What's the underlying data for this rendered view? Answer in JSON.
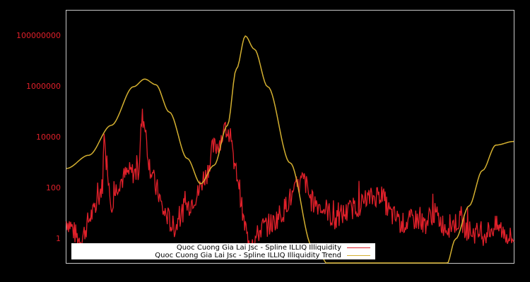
{
  "chart_data": {
    "type": "line",
    "title": "",
    "xlabel": "",
    "ylabel": "",
    "yscale": "log",
    "ylim": [
      0.15,
      1000000000
    ],
    "y_ticks": [
      {
        "label": "100000000",
        "value": 100000000
      },
      {
        "label": "1000000",
        "value": 1000000
      },
      {
        "label": "10000",
        "value": 10000
      },
      {
        "label": "100",
        "value": 100
      },
      {
        "label": "1",
        "value": 1
      }
    ],
    "grid": false,
    "legend_position": "bottom-left-inside",
    "series": [
      {
        "name": "Quoc Cuong Gia Lai Jsc - Spline ILLIQ Illiquidity",
        "color": "#e0202a",
        "x_frac": [
          0.0,
          0.03,
          0.06,
          0.08,
          0.085,
          0.09,
          0.1,
          0.12,
          0.14,
          0.16,
          0.17,
          0.19,
          0.2,
          0.22,
          0.24,
          0.27,
          0.29,
          0.31,
          0.33,
          0.36,
          0.38,
          0.4,
          0.405,
          0.42,
          0.44,
          0.46,
          0.48,
          0.5,
          0.53,
          0.55,
          0.58,
          0.6,
          0.62,
          0.65,
          0.68,
          0.7,
          0.73,
          0.75,
          0.78,
          0.8,
          0.82,
          0.85,
          0.88,
          0.9,
          0.93,
          0.96,
          1.0
        ],
        "values": [
          5,
          1,
          10,
          100,
          15000,
          1000,
          30,
          200,
          400,
          400,
          60000,
          500,
          100,
          10,
          3,
          20,
          50,
          300,
          4000,
          20000,
          400,
          3,
          1,
          1,
          3,
          4,
          10,
          40,
          200,
          30,
          15,
          5,
          10,
          20,
          40,
          60,
          8,
          4,
          6,
          4,
          10,
          3,
          5,
          2,
          1.5,
          3,
          1
        ]
      },
      {
        "name": "Quoc Cuong Gia Lai Jsc - Spline ILLIQ Illiquidity Trend",
        "color": "#d4b030",
        "x_frac": [
          0.0,
          0.05,
          0.1,
          0.15,
          0.175,
          0.2,
          0.23,
          0.27,
          0.3,
          0.33,
          0.36,
          0.38,
          0.4,
          0.42,
          0.45,
          0.5,
          0.55,
          0.6,
          0.65,
          0.7,
          0.75,
          0.8,
          0.85,
          0.87,
          0.9,
          0.93,
          0.96,
          1.0
        ],
        "values": [
          600,
          2000,
          30000,
          1000000,
          2000000,
          1200000,
          100000,
          1500,
          150,
          800,
          30000,
          5000000,
          100000000,
          30000000,
          1000000,
          1000,
          0.5,
          0.05,
          0.01,
          0.005,
          0.01,
          0.03,
          0.1,
          1,
          20,
          500,
          5000,
          7000
        ]
      }
    ]
  },
  "legend": {
    "items": [
      {
        "label": "Quoc Cuong Gia Lai Jsc - Spline ILLIQ Illiquidity",
        "color": "#e0202a"
      },
      {
        "label": "Quoc Cuong Gia Lai Jsc - Spline ILLIQ Illiquidity Trend",
        "color": "#d4b030"
      }
    ]
  }
}
